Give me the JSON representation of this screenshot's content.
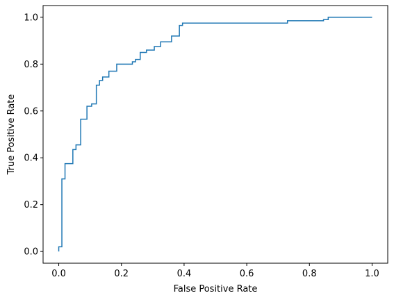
{
  "chart_data": {
    "type": "line",
    "title": "",
    "xlabel": "False Positive Rate",
    "ylabel": "True Positive Rate",
    "xlim": [
      -0.05,
      1.05
    ],
    "ylim": [
      -0.05,
      1.05
    ],
    "xticks": [
      0.0,
      0.2,
      0.4,
      0.6,
      0.8,
      1.0
    ],
    "xtick_labels": [
      "0.0",
      "0.2",
      "0.4",
      "0.6",
      "0.8",
      "1.0"
    ],
    "yticks": [
      0.0,
      0.2,
      0.4,
      0.6,
      0.8,
      1.0
    ],
    "ytick_labels": [
      "0.0",
      "0.2",
      "0.4",
      "0.6",
      "0.8",
      "1.0"
    ],
    "grid": false,
    "legend": "none",
    "series": [
      {
        "color": "#1f77b4",
        "step": true,
        "x": [
          0.0,
          0.0,
          0.0,
          0.01,
          0.01,
          0.02,
          0.02,
          0.045,
          0.045,
          0.055,
          0.055,
          0.07,
          0.07,
          0.09,
          0.09,
          0.105,
          0.105,
          0.12,
          0.12,
          0.13,
          0.13,
          0.14,
          0.14,
          0.16,
          0.16,
          0.185,
          0.185,
          0.235,
          0.235,
          0.245,
          0.245,
          0.26,
          0.26,
          0.28,
          0.28,
          0.305,
          0.305,
          0.325,
          0.325,
          0.36,
          0.36,
          0.385,
          0.385,
          0.395,
          0.395,
          0.73,
          0.73,
          0.845,
          0.845,
          0.86,
          0.86,
          1.0
        ],
        "y": [
          0.0,
          0.0,
          0.02,
          0.02,
          0.31,
          0.31,
          0.375,
          0.375,
          0.435,
          0.435,
          0.455,
          0.455,
          0.565,
          0.565,
          0.62,
          0.62,
          0.63,
          0.63,
          0.71,
          0.71,
          0.73,
          0.73,
          0.745,
          0.745,
          0.77,
          0.77,
          0.8,
          0.8,
          0.81,
          0.81,
          0.82,
          0.82,
          0.85,
          0.85,
          0.86,
          0.86,
          0.875,
          0.875,
          0.895,
          0.895,
          0.92,
          0.92,
          0.965,
          0.965,
          0.975,
          0.975,
          0.985,
          0.985,
          0.99,
          0.99,
          1.0,
          1.0
        ]
      }
    ]
  }
}
